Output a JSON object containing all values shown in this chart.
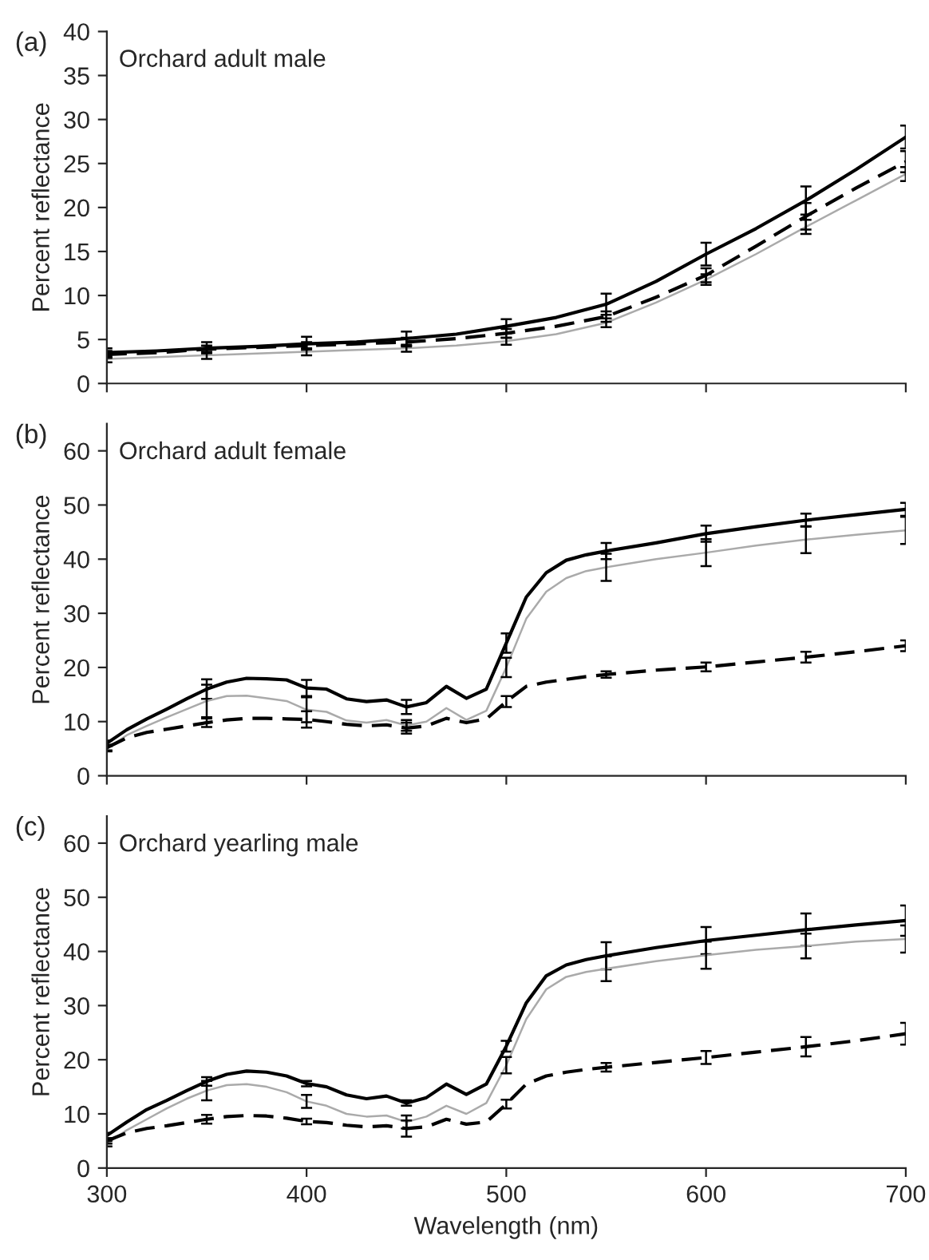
{
  "chart_data": [
    {
      "type": "line",
      "annotations": [
        "(a)",
        "Orchard adult male"
      ],
      "ylabel": "Percent reflectance",
      "xlim": [
        300,
        700
      ],
      "xticks": [
        300,
        400,
        500,
        600,
        700
      ],
      "ylim": [
        0,
        40
      ],
      "yticks": [
        0,
        5,
        10,
        15,
        20,
        25,
        30,
        35,
        40
      ],
      "tick_labels": "y",
      "grid": false,
      "legend": false,
      "x": [
        300,
        325,
        350,
        375,
        400,
        425,
        450,
        475,
        500,
        525,
        550,
        575,
        600,
        625,
        650,
        675,
        700
      ],
      "series": [
        {
          "color": "#000000",
          "line_style": "solid",
          "values": [
            3.5,
            3.7,
            4.0,
            4.2,
            4.5,
            4.7,
            5.1,
            5.6,
            6.5,
            7.5,
            9.0,
            11.6,
            14.7,
            17.6,
            20.8,
            24.3,
            28.0
          ],
          "errors": [
            0.5,
            null,
            0.7,
            null,
            0.8,
            null,
            0.8,
            null,
            0.8,
            null,
            1.2,
            null,
            1.3,
            null,
            1.6,
            null,
            1.3
          ]
        },
        {
          "color": "#aaaaaa",
          "line_style": "solid",
          "values": [
            2.8,
            3.0,
            3.2,
            3.4,
            3.6,
            3.8,
            4.0,
            4.3,
            4.8,
            5.6,
            6.9,
            9.2,
            11.8,
            14.7,
            17.8,
            20.8,
            23.8
          ],
          "errors": [
            0.4,
            null,
            0.4,
            null,
            0.4,
            null,
            0.4,
            null,
            0.4,
            null,
            0.5,
            null,
            0.6,
            null,
            0.8,
            null,
            0.8
          ]
        },
        {
          "color": "#000000",
          "line_style": "dashed",
          "values": [
            3.3,
            3.5,
            3.9,
            4.1,
            4.3,
            4.5,
            4.7,
            5.1,
            5.7,
            6.5,
            7.6,
            9.8,
            12.3,
            15.6,
            19.0,
            22.2,
            25.2
          ],
          "errors": [
            0.4,
            null,
            0.4,
            null,
            0.4,
            null,
            0.5,
            null,
            0.5,
            null,
            0.6,
            null,
            0.8,
            null,
            1.5,
            null,
            1.2
          ]
        }
      ]
    },
    {
      "type": "line",
      "annotations": [
        "(b)",
        "Orchard adult female"
      ],
      "ylabel": "Percent reflectance",
      "xlim": [
        300,
        700
      ],
      "xticks": [
        300,
        400,
        500,
        600,
        700
      ],
      "ylim": [
        0,
        65
      ],
      "yticks": [
        0,
        10,
        20,
        30,
        40,
        50,
        60
      ],
      "tick_labels": "y",
      "grid": false,
      "legend": false,
      "x": [
        300,
        310,
        320,
        330,
        340,
        350,
        360,
        370,
        380,
        390,
        400,
        410,
        420,
        430,
        440,
        450,
        460,
        470,
        480,
        490,
        500,
        510,
        520,
        530,
        540,
        550,
        575,
        600,
        625,
        650,
        675,
        700
      ],
      "series": [
        {
          "color": "#000000",
          "line_style": "solid",
          "values": [
            6.0,
            8.5,
            10.5,
            12.3,
            14.2,
            16.0,
            17.3,
            18.0,
            17.9,
            17.7,
            16.2,
            16.0,
            14.2,
            13.7,
            14.0,
            12.7,
            13.5,
            16.5,
            14.3,
            16.0,
            24.5,
            33.0,
            37.5,
            39.8,
            40.8,
            41.5,
            43.0,
            44.7,
            46.0,
            47.2,
            48.2,
            49.2
          ],
          "errors": [
            0.5,
            null,
            null,
            null,
            null,
            1.8,
            null,
            null,
            null,
            null,
            1.5,
            null,
            null,
            null,
            null,
            1.3,
            null,
            null,
            null,
            null,
            1.8,
            null,
            null,
            null,
            null,
            1.5,
            null,
            1.5,
            null,
            1.2,
            null,
            1.2
          ]
        },
        {
          "color": "#aaaaaa",
          "line_style": "solid",
          "values": [
            5.0,
            7.5,
            9.2,
            10.8,
            12.3,
            13.8,
            14.7,
            14.8,
            14.3,
            13.8,
            12.2,
            11.8,
            10.2,
            9.8,
            10.3,
            9.3,
            10.0,
            12.5,
            10.3,
            12.0,
            20.0,
            29.0,
            34.0,
            36.5,
            37.8,
            38.5,
            40.0,
            41.2,
            42.5,
            43.6,
            44.5,
            45.3
          ],
          "errors": [
            0.5,
            null,
            null,
            null,
            null,
            3.0,
            null,
            null,
            null,
            null,
            2.3,
            null,
            null,
            null,
            null,
            1.0,
            null,
            null,
            null,
            null,
            1.8,
            null,
            null,
            null,
            null,
            2.5,
            null,
            2.5,
            null,
            2.5,
            null,
            2.5
          ]
        },
        {
          "color": "#000000",
          "line_style": "dashed",
          "values": [
            5.2,
            7.0,
            8.0,
            8.6,
            9.2,
            9.8,
            10.3,
            10.6,
            10.6,
            10.5,
            10.4,
            10.0,
            9.5,
            9.2,
            9.4,
            8.8,
            9.2,
            10.6,
            9.8,
            10.5,
            13.7,
            16.5,
            17.3,
            17.8,
            18.3,
            18.7,
            19.5,
            20.1,
            21.0,
            21.9,
            22.9,
            24.0
          ],
          "errors": [
            0.5,
            null,
            null,
            null,
            null,
            0.8,
            null,
            null,
            null,
            null,
            1.5,
            null,
            null,
            null,
            null,
            1.0,
            null,
            null,
            null,
            null,
            1.0,
            null,
            null,
            null,
            null,
            0.6,
            null,
            0.8,
            null,
            1.0,
            null,
            1.0
          ]
        }
      ]
    },
    {
      "type": "line",
      "annotations": [
        "(c)",
        "Orchard yearling male"
      ],
      "xlabel": "Wavelength (nm)",
      "ylabel": "Percent reflectance",
      "xlim": [
        300,
        700
      ],
      "xticks": [
        300,
        400,
        500,
        600,
        700
      ],
      "ylim": [
        0,
        65
      ],
      "yticks": [
        0,
        10,
        20,
        30,
        40,
        50,
        60
      ],
      "grid": false,
      "legend": false,
      "x": [
        300,
        310,
        320,
        330,
        340,
        350,
        360,
        370,
        380,
        390,
        400,
        410,
        420,
        430,
        440,
        450,
        460,
        470,
        480,
        490,
        500,
        510,
        520,
        530,
        540,
        550,
        575,
        600,
        625,
        650,
        675,
        700
      ],
      "series": [
        {
          "color": "#000000",
          "line_style": "solid",
          "values": [
            6.0,
            8.5,
            10.8,
            12.5,
            14.3,
            16.0,
            17.3,
            17.9,
            17.7,
            17.0,
            15.6,
            15.0,
            13.5,
            12.8,
            13.3,
            12.0,
            13.0,
            15.5,
            13.6,
            15.5,
            22.5,
            30.5,
            35.5,
            37.5,
            38.5,
            39.2,
            40.7,
            42.0,
            43.0,
            44.0,
            44.9,
            45.7
          ],
          "errors": [
            0.5,
            null,
            null,
            null,
            null,
            0.8,
            null,
            null,
            null,
            null,
            0.5,
            null,
            null,
            null,
            null,
            0.5,
            null,
            null,
            null,
            null,
            1.0,
            null,
            null,
            null,
            null,
            2.5,
            null,
            2.5,
            null,
            3.0,
            null,
            2.8
          ]
        },
        {
          "color": "#aaaaaa",
          "line_style": "solid",
          "values": [
            4.5,
            7.0,
            9.0,
            11.0,
            12.8,
            14.3,
            15.3,
            15.5,
            15.0,
            14.0,
            12.3,
            11.5,
            10.0,
            9.5,
            9.7,
            8.5,
            9.5,
            11.5,
            10.0,
            12.0,
            19.0,
            27.5,
            33.0,
            35.3,
            36.2,
            36.8,
            38.2,
            39.3,
            40.3,
            41.0,
            41.8,
            42.3
          ],
          "errors": [
            0.5,
            null,
            null,
            null,
            null,
            1.8,
            null,
            null,
            null,
            null,
            1.2,
            null,
            null,
            null,
            null,
            1.2,
            null,
            null,
            null,
            null,
            1.5,
            null,
            null,
            null,
            null,
            2.3,
            null,
            2.5,
            null,
            2.3,
            null,
            2.5
          ]
        },
        {
          "color": "#000000",
          "line_style": "dashed",
          "values": [
            5.0,
            6.5,
            7.3,
            7.8,
            8.4,
            9.0,
            9.5,
            9.7,
            9.6,
            9.2,
            8.6,
            8.4,
            7.9,
            7.6,
            7.8,
            7.3,
            7.6,
            9.0,
            8.1,
            8.5,
            11.8,
            15.5,
            17.0,
            17.7,
            18.2,
            18.6,
            19.5,
            20.4,
            21.4,
            22.4,
            23.5,
            24.8
          ],
          "errors": [
            0.5,
            null,
            null,
            null,
            null,
            0.8,
            null,
            null,
            null,
            null,
            0.5,
            null,
            null,
            null,
            null,
            1.5,
            null,
            null,
            null,
            null,
            0.8,
            null,
            null,
            null,
            null,
            0.8,
            null,
            1.2,
            null,
            1.8,
            null,
            2.0
          ]
        }
      ]
    }
  ]
}
